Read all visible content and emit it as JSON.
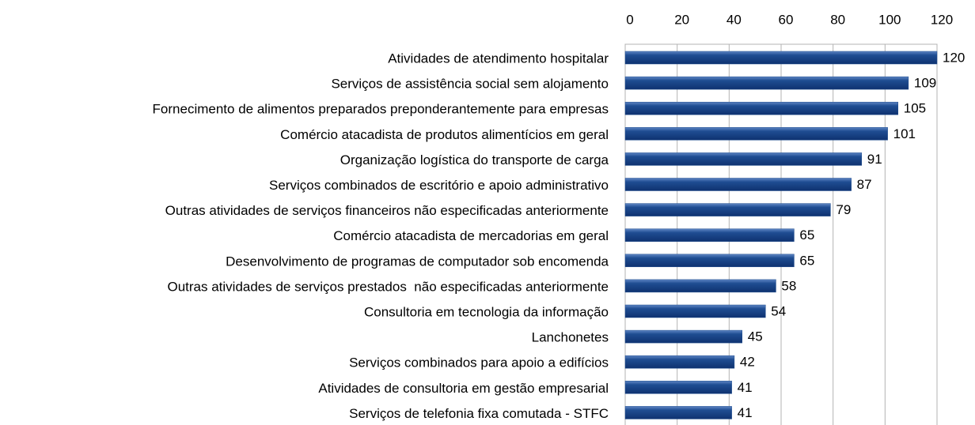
{
  "chart_data": {
    "type": "bar",
    "categories": [
      "Atividades de atendimento hospitalar",
      "Serviços de assistência social sem alojamento",
      "Fornecimento de alimentos preparados preponderantemente para empresas",
      "Comércio atacadista de produtos alimentícios em geral",
      "Organização logística do transporte de carga",
      "Serviços combinados de escritório e apoio administrativo",
      "Outras atividades de serviços financeiros não especificadas anteriormente",
      "Comércio atacadista de mercadorias em geral",
      "Desenvolvimento de programas de computador sob encomenda",
      "Outras atividades de serviços prestados  não especificadas anteriormente",
      "Consultoria em tecnologia da informação",
      "Lanchonetes",
      "Serviços combinados para apoio a edifícios",
      "Atividades de consultoria em gestão empresarial",
      "Serviços de telefonia fixa comutada - STFC"
    ],
    "values": [
      120,
      109,
      105,
      101,
      91,
      87,
      79,
      65,
      65,
      58,
      54,
      45,
      42,
      41,
      41
    ],
    "color": "#1c4a8c",
    "xlim": [
      0,
      120
    ],
    "xticks": [
      0,
      20,
      40,
      60,
      80,
      100,
      120
    ],
    "grid": true
  }
}
